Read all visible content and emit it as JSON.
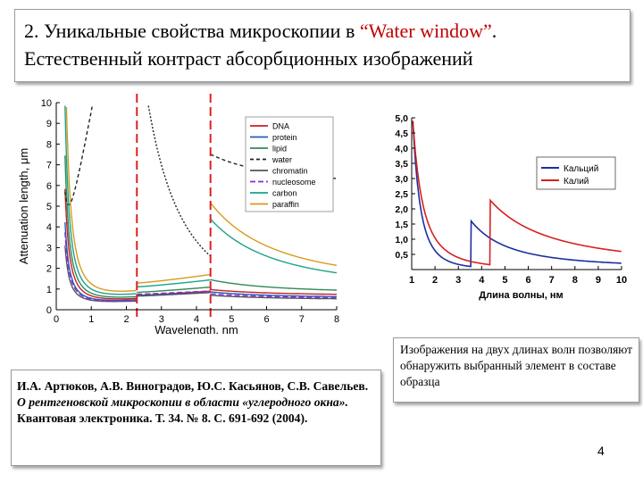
{
  "title": {
    "line1_prefix": "2. Уникальные свойства микроскопии в ",
    "line1_accent": "“Water window”",
    "line1_suffix": ".",
    "line2": "Естественный контраст абсорбционных изображений"
  },
  "reference": {
    "authors": "И.А. Артюков, А.В. Виноградов, Ю.С. Касьянов, С.В. Савельев.",
    "article": "О рентгеновской микроскопии в области «углеродного окна».",
    "journal": "Квантовая электроника. Т. 34. № 8. С. 691-692 (2004)."
  },
  "note": "Изображения на двух длинах волн позволяют обнаружить выбранный элемент в составе образца",
  "page_number": "4",
  "chart_data": [
    {
      "type": "line",
      "xlabel": "Wavelength, nm",
      "ylabel": "Attenuation length, μm",
      "xlim": [
        0,
        8
      ],
      "ylim": [
        0,
        10
      ],
      "xticks": [
        "0",
        "1",
        "2",
        "3",
        "4",
        "5",
        "6",
        "7",
        "8"
      ],
      "yticks": [
        "0",
        "1",
        "2",
        "3",
        "4",
        "5",
        "6",
        "7",
        "8",
        "9",
        "10"
      ],
      "grid": false,
      "legend_position": "top-right",
      "markers": [
        {
          "x": 2.3,
          "color": "#dd2222",
          "style": "dashed"
        },
        {
          "x": 4.4,
          "color": "#dd2222",
          "style": "dashed"
        }
      ],
      "series": [
        {
          "name": "DNA",
          "color": "#cc1f1f",
          "dash": "",
          "a": 0.35,
          "b": 0.12,
          "c": 0.55
        },
        {
          "name": "protein",
          "color": "#1f5fb8",
          "dash": "",
          "a": 0.25,
          "b": 0.1,
          "c": 0.55
        },
        {
          "name": "lipid",
          "color": "#2e8b57",
          "dash": "",
          "a": 0.45,
          "b": 0.15,
          "c": 1.2
        },
        {
          "name": "water",
          "color": "#222222",
          "dash": "4,3",
          "a": 0.2,
          "b": 9.2,
          "c": 2.8
        },
        {
          "name": "chromatin",
          "color": "#555555",
          "dash": "",
          "a": 0.18,
          "b": 0.08,
          "c": 0.4
        },
        {
          "name": "nucleosome",
          "color": "#8a2be2",
          "dash": "6,3",
          "a": 0.22,
          "b": 0.09,
          "c": 0.45
        },
        {
          "name": "carbon",
          "color": "#1aa38a",
          "dash": "",
          "a": 0.6,
          "b": 0.2,
          "c": 6.2
        },
        {
          "name": "paraffin",
          "color": "#d99a1e",
          "dash": "",
          "a": 0.8,
          "b": 0.25,
          "c": 7.2
        }
      ]
    },
    {
      "type": "line",
      "xlabel": "Длина волны, нм",
      "ylabel": "",
      "xlim": [
        1,
        10
      ],
      "ylim": [
        0,
        5
      ],
      "xticks": [
        "1",
        "2",
        "3",
        "4",
        "5",
        "6",
        "7",
        "8",
        "9",
        "10"
      ],
      "yticks": [
        "0,5",
        "1,0",
        "1,5",
        "2,0",
        "2,5",
        "3,0",
        "3,5",
        "4,0",
        "4,5",
        "5,0"
      ],
      "ytick_values": [
        0.5,
        1.0,
        1.5,
        2.0,
        2.5,
        3.0,
        3.5,
        4.0,
        4.5,
        5.0
      ],
      "grid": false,
      "legend_position": "top-right",
      "series": [
        {
          "name": "Кальций",
          "color": "#1c2fa0",
          "edge": 3.55,
          "pre_peak": 5.0,
          "jump": 1.55
        },
        {
          "name": "Калий",
          "color": "#d82020",
          "edge": 4.35,
          "pre_peak": 5.0,
          "jump": 2.25
        }
      ]
    }
  ]
}
